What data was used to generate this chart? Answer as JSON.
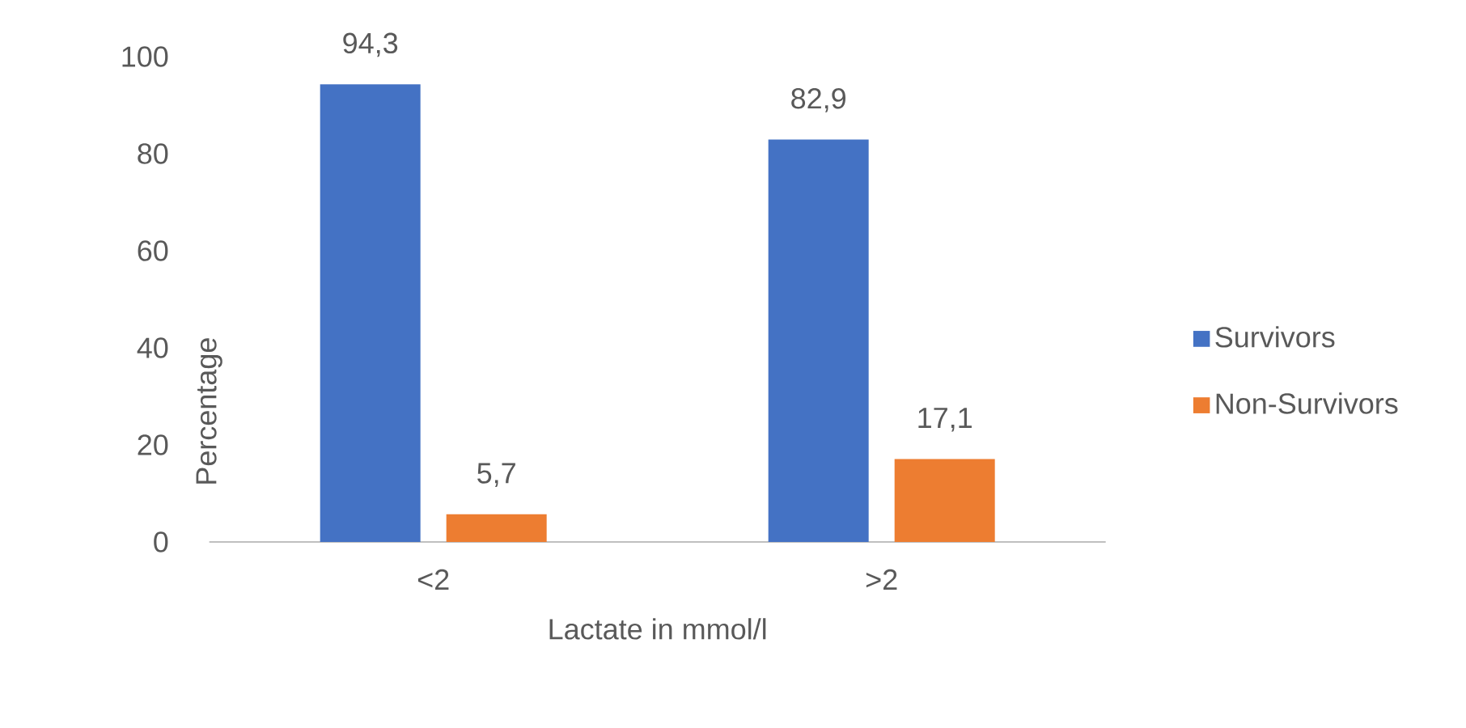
{
  "chart_data": {
    "type": "bar",
    "xlabel": "Lactate in mmol/l",
    "ylabel": "Percentage",
    "categories": [
      "<2",
      ">2"
    ],
    "series": [
      {
        "name": "Survivors",
        "color": "#4472c4",
        "values": [
          94.3,
          82.9
        ],
        "value_labels": [
          "94,3",
          "82,9"
        ]
      },
      {
        "name": "Non-Survivors",
        "color": "#ed7d31",
        "values": [
          5.7,
          17.1
        ],
        "value_labels": [
          "5,7",
          "17,1"
        ]
      }
    ],
    "ylim": [
      0,
      100
    ],
    "yticks": [
      0,
      20,
      40,
      60,
      80,
      100
    ],
    "legend": "right"
  }
}
